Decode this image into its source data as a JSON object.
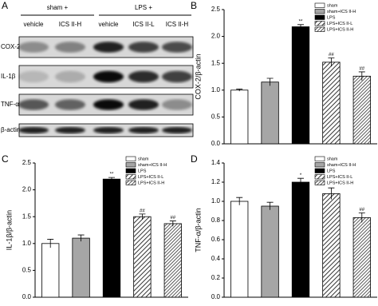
{
  "blot": {
    "panel": "A",
    "groups": [
      "sham +",
      "LPS +"
    ],
    "lanes": [
      "vehicle",
      "ICS II-H",
      "vehicle",
      "ICS II-L",
      "ICS II-H"
    ],
    "rows": [
      "COX-2",
      "IL-1β",
      "TNF-α",
      "β-actin"
    ]
  },
  "chart_data": [
    {
      "panel": "B",
      "type": "bar",
      "ylabel": "COX-2/β-actin",
      "categories": [
        "sham",
        "sham+ICS II-H",
        "LPS",
        "LPS+ICS II-L",
        "LPS+ICS II-H"
      ],
      "values": [
        1.0,
        1.15,
        2.18,
        1.52,
        1.26
      ],
      "errors": [
        0.02,
        0.07,
        0.04,
        0.08,
        0.08
      ],
      "annotations": [
        null,
        null,
        "**",
        "##",
        "##"
      ],
      "colors": [
        "#ffffff",
        "#a6a6a6",
        "#000000",
        "#ffffff",
        "#ffffff"
      ],
      "hatch": [
        0,
        0,
        0,
        1,
        2
      ],
      "ylim": [
        0,
        2.5
      ],
      "yticks": [
        {
          "value": 0,
          "label": "0.0"
        },
        0.5,
        {
          "value": 1,
          "label": "1.0"
        },
        1.5,
        {
          "value": 2,
          "label": "2.0"
        },
        2.5
      ],
      "legend": "top-right"
    },
    {
      "panel": "C",
      "type": "bar",
      "ylabel": "IL-1β/β-actin",
      "categories": [
        "sham",
        "sham+ICS II-H",
        "LPS",
        "LPS+ICS II-L",
        "LPS+ICS II-H"
      ],
      "values": [
        1.0,
        1.1,
        2.2,
        1.5,
        1.37
      ],
      "errors": [
        0.08,
        0.06,
        0.03,
        0.05,
        0.05
      ],
      "annotations": [
        null,
        null,
        "**",
        "##",
        "##"
      ],
      "colors": [
        "#ffffff",
        "#a6a6a6",
        "#000000",
        "#ffffff",
        "#ffffff"
      ],
      "hatch": [
        0,
        0,
        0,
        1,
        2
      ],
      "ylim": [
        0,
        2.5
      ],
      "yticks": [
        {
          "value": 0,
          "label": "0.0"
        },
        0.5,
        {
          "value": 1,
          "label": "1.0"
        },
        1.5,
        {
          "value": 2,
          "label": "2.0"
        },
        2.5
      ],
      "legend": "top-right"
    },
    {
      "panel": "D",
      "type": "bar",
      "ylabel": "TNF-α/β-actin",
      "categories": [
        "sham",
        "sham+ICS II-H",
        "LPS",
        "LPS+ICS II-L",
        "LPS+ICS II-H"
      ],
      "values": [
        1.0,
        0.95,
        1.2,
        1.08,
        0.83
      ],
      "errors": [
        0.04,
        0.04,
        0.04,
        0.06,
        0.05
      ],
      "annotations": [
        null,
        null,
        "*",
        null,
        "##"
      ],
      "colors": [
        "#ffffff",
        "#a6a6a6",
        "#000000",
        "#ffffff",
        "#ffffff"
      ],
      "hatch": [
        0,
        0,
        0,
        1,
        2
      ],
      "ylim": [
        0,
        1.4
      ],
      "yticks": [
        {
          "value": 0,
          "label": "0.0"
        },
        0.2,
        0.4,
        0.6,
        0.8,
        {
          "value": 1,
          "label": "1.0"
        },
        1.2,
        1.4
      ],
      "legend": "top-right"
    }
  ]
}
